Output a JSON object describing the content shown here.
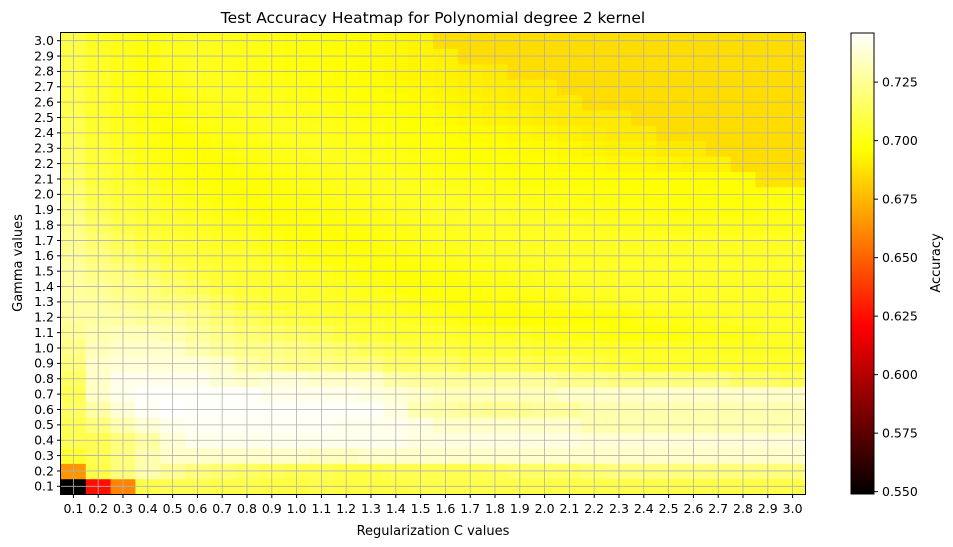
{
  "chart_data": {
    "type": "heatmap",
    "title": "Test Accuracy Heatmap for Polynomial degree 2 kernel",
    "xlabel": "Regularization C values",
    "ylabel": "Gamma values",
    "x_ticks": [
      "0.1",
      "0.2",
      "0.3",
      "0.4",
      "0.5",
      "0.6",
      "0.7",
      "0.8",
      "0.9",
      "1.0",
      "1.1",
      "1.2",
      "1.3",
      "1.4",
      "1.5",
      "1.6",
      "1.7",
      "1.8",
      "1.9",
      "2.0",
      "2.1",
      "2.2",
      "2.3",
      "2.4",
      "2.5",
      "2.6",
      "2.7",
      "2.8",
      "2.9",
      "3.0"
    ],
    "y_ticks": [
      "0.1",
      "0.2",
      "0.3",
      "0.4",
      "0.5",
      "0.6",
      "0.7",
      "0.8",
      "0.9",
      "1.0",
      "1.1",
      "1.2",
      "1.3",
      "1.4",
      "1.5",
      "1.6",
      "1.7",
      "1.8",
      "1.9",
      "2.0",
      "2.1",
      "2.2",
      "2.3",
      "2.4",
      "2.5",
      "2.6",
      "2.7",
      "2.8",
      "2.9",
      "3.0"
    ],
    "grid": true,
    "colormap": "hot",
    "colorbar": {
      "label": "Accuracy",
      "vmin": 0.549,
      "vmax": 0.746,
      "ticks": [
        "0.550",
        "0.575",
        "0.600",
        "0.625",
        "0.650",
        "0.675",
        "0.700",
        "0.725"
      ],
      "tick_values": [
        0.55,
        0.575,
        0.6,
        0.625,
        0.65,
        0.675,
        0.7,
        0.725
      ]
    },
    "grid_color": "#b0b0b0",
    "values": [
      [
        0.549,
        0.625,
        0.66,
        0.71,
        0.712,
        0.712,
        0.71,
        0.71,
        0.708,
        0.708,
        0.71,
        0.708,
        0.708,
        0.708,
        0.71,
        0.71,
        0.71,
        0.71,
        0.71,
        0.71,
        0.71,
        0.71,
        0.71,
        0.71,
        0.71,
        0.71,
        0.71,
        0.71,
        0.71,
        0.71
      ],
      [
        0.665,
        0.71,
        0.72,
        0.73,
        0.725,
        0.72,
        0.718,
        0.715,
        0.713,
        0.712,
        0.712,
        0.71,
        0.71,
        0.712,
        0.712,
        0.712,
        0.712,
        0.714,
        0.716,
        0.716,
        0.716,
        0.718,
        0.72,
        0.72,
        0.72,
        0.72,
        0.72,
        0.72,
        0.72,
        0.72
      ],
      [
        0.705,
        0.712,
        0.72,
        0.73,
        0.735,
        0.735,
        0.735,
        0.735,
        0.735,
        0.735,
        0.733,
        0.733,
        0.735,
        0.735,
        0.735,
        0.735,
        0.735,
        0.735,
        0.735,
        0.735,
        0.735,
        0.735,
        0.735,
        0.735,
        0.735,
        0.735,
        0.735,
        0.735,
        0.735,
        0.735
      ],
      [
        0.712,
        0.712,
        0.72,
        0.728,
        0.738,
        0.742,
        0.742,
        0.742,
        0.742,
        0.742,
        0.742,
        0.742,
        0.742,
        0.742,
        0.74,
        0.74,
        0.74,
        0.74,
        0.74,
        0.74,
        0.74,
        0.738,
        0.738,
        0.738,
        0.738,
        0.738,
        0.738,
        0.738,
        0.738,
        0.738
      ],
      [
        0.712,
        0.72,
        0.73,
        0.738,
        0.742,
        0.744,
        0.744,
        0.744,
        0.744,
        0.744,
        0.744,
        0.742,
        0.742,
        0.742,
        0.74,
        0.735,
        0.735,
        0.735,
        0.735,
        0.735,
        0.735,
        0.73,
        0.73,
        0.73,
        0.73,
        0.73,
        0.73,
        0.73,
        0.73,
        0.73
      ],
      [
        0.715,
        0.728,
        0.738,
        0.744,
        0.746,
        0.745,
        0.745,
        0.745,
        0.745,
        0.745,
        0.745,
        0.745,
        0.745,
        0.74,
        0.73,
        0.728,
        0.726,
        0.724,
        0.724,
        0.726,
        0.726,
        0.73,
        0.73,
        0.73,
        0.73,
        0.73,
        0.73,
        0.73,
        0.73,
        0.73
      ],
      [
        0.712,
        0.735,
        0.742,
        0.745,
        0.745,
        0.745,
        0.745,
        0.745,
        0.742,
        0.742,
        0.742,
        0.742,
        0.74,
        0.738,
        0.735,
        0.732,
        0.732,
        0.732,
        0.732,
        0.732,
        0.735,
        0.735,
        0.735,
        0.735,
        0.735,
        0.735,
        0.735,
        0.735,
        0.735,
        0.735
      ],
      [
        0.715,
        0.735,
        0.742,
        0.742,
        0.742,
        0.742,
        0.738,
        0.735,
        0.738,
        0.738,
        0.735,
        0.735,
        0.735,
        0.728,
        0.726,
        0.726,
        0.726,
        0.726,
        0.726,
        0.726,
        0.722,
        0.722,
        0.72,
        0.72,
        0.72,
        0.72,
        0.72,
        0.715,
        0.715,
        0.712
      ],
      [
        0.72,
        0.735,
        0.738,
        0.738,
        0.738,
        0.738,
        0.735,
        0.728,
        0.725,
        0.722,
        0.722,
        0.72,
        0.72,
        0.715,
        0.715,
        0.715,
        0.712,
        0.712,
        0.712,
        0.71,
        0.71,
        0.708,
        0.706,
        0.704,
        0.704,
        0.704,
        0.704,
        0.704,
        0.704,
        0.704
      ],
      [
        0.722,
        0.732,
        0.735,
        0.735,
        0.735,
        0.73,
        0.726,
        0.722,
        0.722,
        0.72,
        0.718,
        0.715,
        0.712,
        0.71,
        0.708,
        0.708,
        0.706,
        0.706,
        0.706,
        0.704,
        0.704,
        0.704,
        0.703,
        0.703,
        0.703,
        0.703,
        0.702,
        0.702,
        0.702,
        0.702
      ],
      [
        0.725,
        0.73,
        0.732,
        0.732,
        0.73,
        0.726,
        0.722,
        0.718,
        0.716,
        0.714,
        0.712,
        0.708,
        0.706,
        0.705,
        0.705,
        0.704,
        0.703,
        0.702,
        0.702,
        0.7,
        0.699,
        0.699,
        0.697,
        0.697,
        0.697,
        0.699,
        0.7,
        0.7,
        0.703,
        0.703
      ],
      [
        0.727,
        0.728,
        0.728,
        0.726,
        0.726,
        0.722,
        0.718,
        0.714,
        0.71,
        0.708,
        0.706,
        0.705,
        0.704,
        0.703,
        0.702,
        0.7,
        0.698,
        0.697,
        0.696,
        0.696,
        0.696,
        0.697,
        0.697,
        0.699,
        0.7,
        0.701,
        0.702,
        0.703,
        0.703,
        0.703
      ],
      [
        0.727,
        0.727,
        0.725,
        0.722,
        0.72,
        0.718,
        0.713,
        0.708,
        0.706,
        0.705,
        0.704,
        0.703,
        0.702,
        0.701,
        0.699,
        0.698,
        0.697,
        0.698,
        0.698,
        0.699,
        0.7,
        0.701,
        0.702,
        0.703,
        0.703,
        0.703,
        0.703,
        0.703,
        0.703,
        0.703
      ],
      [
        0.727,
        0.725,
        0.722,
        0.72,
        0.716,
        0.712,
        0.708,
        0.706,
        0.705,
        0.704,
        0.703,
        0.702,
        0.7,
        0.698,
        0.697,
        0.697,
        0.698,
        0.699,
        0.7,
        0.701,
        0.702,
        0.703,
        0.703,
        0.703,
        0.703,
        0.703,
        0.703,
        0.703,
        0.703,
        0.703
      ],
      [
        0.727,
        0.722,
        0.72,
        0.716,
        0.712,
        0.708,
        0.706,
        0.705,
        0.704,
        0.702,
        0.701,
        0.699,
        0.697,
        0.696,
        0.697,
        0.698,
        0.699,
        0.7,
        0.701,
        0.702,
        0.703,
        0.703,
        0.703,
        0.703,
        0.703,
        0.703,
        0.703,
        0.703,
        0.703,
        0.703
      ],
      [
        0.725,
        0.72,
        0.716,
        0.712,
        0.708,
        0.706,
        0.705,
        0.704,
        0.702,
        0.7,
        0.698,
        0.697,
        0.697,
        0.698,
        0.699,
        0.7,
        0.701,
        0.702,
        0.703,
        0.703,
        0.703,
        0.703,
        0.703,
        0.703,
        0.703,
        0.703,
        0.703,
        0.703,
        0.703,
        0.703
      ],
      [
        0.724,
        0.718,
        0.713,
        0.708,
        0.706,
        0.705,
        0.703,
        0.702,
        0.7,
        0.698,
        0.697,
        0.696,
        0.698,
        0.699,
        0.7,
        0.701,
        0.702,
        0.703,
        0.703,
        0.703,
        0.703,
        0.703,
        0.703,
        0.703,
        0.703,
        0.703,
        0.703,
        0.703,
        0.703,
        0.703
      ],
      [
        0.722,
        0.715,
        0.71,
        0.706,
        0.705,
        0.703,
        0.701,
        0.7,
        0.698,
        0.697,
        0.697,
        0.698,
        0.699,
        0.7,
        0.701,
        0.702,
        0.703,
        0.703,
        0.703,
        0.703,
        0.703,
        0.702,
        0.701,
        0.701,
        0.7,
        0.7,
        0.7,
        0.7,
        0.7,
        0.7
      ],
      [
        0.72,
        0.712,
        0.708,
        0.705,
        0.703,
        0.701,
        0.699,
        0.697,
        0.696,
        0.697,
        0.698,
        0.699,
        0.7,
        0.701,
        0.702,
        0.703,
        0.703,
        0.703,
        0.702,
        0.701,
        0.7,
        0.7,
        0.699,
        0.699,
        0.698,
        0.698,
        0.698,
        0.698,
        0.699,
        0.699
      ],
      [
        0.718,
        0.71,
        0.706,
        0.704,
        0.701,
        0.699,
        0.697,
        0.696,
        0.697,
        0.698,
        0.699,
        0.7,
        0.701,
        0.702,
        0.702,
        0.702,
        0.701,
        0.7,
        0.7,
        0.699,
        0.699,
        0.698,
        0.698,
        0.697,
        0.697,
        0.697,
        0.697,
        0.697,
        0.697,
        0.697
      ],
      [
        0.716,
        0.708,
        0.705,
        0.702,
        0.699,
        0.697,
        0.696,
        0.697,
        0.698,
        0.699,
        0.7,
        0.701,
        0.702,
        0.702,
        0.701,
        0.7,
        0.7,
        0.699,
        0.698,
        0.697,
        0.697,
        0.696,
        0.696,
        0.696,
        0.696,
        0.696,
        0.696,
        0.696,
        0.688,
        0.688
      ],
      [
        0.714,
        0.707,
        0.704,
        0.7,
        0.698,
        0.696,
        0.696,
        0.698,
        0.699,
        0.7,
        0.701,
        0.702,
        0.701,
        0.7,
        0.699,
        0.698,
        0.697,
        0.697,
        0.696,
        0.696,
        0.695,
        0.695,
        0.694,
        0.694,
        0.693,
        0.692,
        0.692,
        0.686,
        0.686,
        0.686
      ],
      [
        0.713,
        0.706,
        0.703,
        0.699,
        0.697,
        0.696,
        0.698,
        0.699,
        0.7,
        0.701,
        0.702,
        0.701,
        0.7,
        0.699,
        0.698,
        0.697,
        0.696,
        0.696,
        0.695,
        0.695,
        0.694,
        0.693,
        0.692,
        0.692,
        0.69,
        0.69,
        0.686,
        0.686,
        0.686,
        0.686
      ],
      [
        0.712,
        0.705,
        0.702,
        0.699,
        0.696,
        0.697,
        0.699,
        0.7,
        0.701,
        0.702,
        0.701,
        0.7,
        0.699,
        0.698,
        0.697,
        0.696,
        0.695,
        0.695,
        0.694,
        0.693,
        0.692,
        0.691,
        0.69,
        0.69,
        0.686,
        0.686,
        0.686,
        0.686,
        0.686,
        0.686
      ],
      [
        0.711,
        0.704,
        0.701,
        0.698,
        0.697,
        0.699,
        0.7,
        0.701,
        0.702,
        0.701,
        0.7,
        0.699,
        0.698,
        0.697,
        0.696,
        0.695,
        0.694,
        0.693,
        0.692,
        0.691,
        0.69,
        0.69,
        0.69,
        0.686,
        0.686,
        0.686,
        0.686,
        0.686,
        0.686,
        0.686
      ],
      [
        0.71,
        0.704,
        0.701,
        0.698,
        0.698,
        0.7,
        0.701,
        0.702,
        0.701,
        0.7,
        0.699,
        0.698,
        0.697,
        0.696,
        0.695,
        0.694,
        0.693,
        0.692,
        0.691,
        0.69,
        0.69,
        0.686,
        0.686,
        0.686,
        0.686,
        0.686,
        0.686,
        0.686,
        0.686,
        0.686
      ],
      [
        0.71,
        0.704,
        0.7,
        0.697,
        0.699,
        0.701,
        0.702,
        0.701,
        0.7,
        0.699,
        0.698,
        0.697,
        0.696,
        0.695,
        0.694,
        0.693,
        0.692,
        0.691,
        0.69,
        0.69,
        0.686,
        0.686,
        0.686,
        0.686,
        0.686,
        0.686,
        0.686,
        0.686,
        0.686,
        0.686
      ],
      [
        0.709,
        0.703,
        0.7,
        0.697,
        0.7,
        0.702,
        0.701,
        0.7,
        0.699,
        0.698,
        0.697,
        0.696,
        0.695,
        0.694,
        0.693,
        0.692,
        0.691,
        0.69,
        0.686,
        0.686,
        0.686,
        0.686,
        0.686,
        0.686,
        0.686,
        0.686,
        0.686,
        0.686,
        0.686,
        0.686
      ],
      [
        0.709,
        0.703,
        0.7,
        0.697,
        0.701,
        0.702,
        0.701,
        0.7,
        0.699,
        0.698,
        0.697,
        0.696,
        0.695,
        0.694,
        0.693,
        0.692,
        0.686,
        0.686,
        0.686,
        0.686,
        0.686,
        0.686,
        0.686,
        0.686,
        0.686,
        0.686,
        0.686,
        0.686,
        0.686,
        0.686
      ],
      [
        0.709,
        0.702,
        0.7,
        0.698,
        0.701,
        0.702,
        0.701,
        0.7,
        0.699,
        0.698,
        0.697,
        0.696,
        0.695,
        0.694,
        0.693,
        0.686,
        0.686,
        0.686,
        0.686,
        0.686,
        0.686,
        0.686,
        0.686,
        0.686,
        0.686,
        0.686,
        0.686,
        0.686,
        0.686,
        0.686
      ]
    ]
  }
}
